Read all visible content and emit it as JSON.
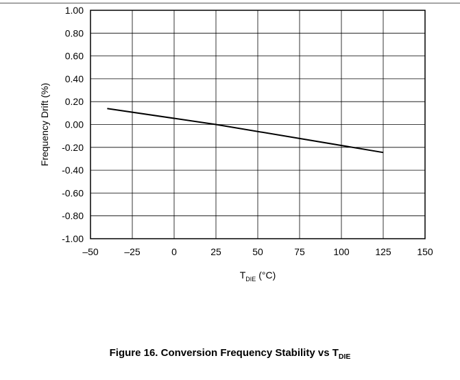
{
  "chart_data": {
    "type": "line",
    "title": "",
    "xlabel": "T",
    "xlabel_sub": "DIE",
    "xlabel_suffix": " (°C)",
    "ylabel": "Frequency Drift (%)",
    "xlim": [
      -50,
      150
    ],
    "ylim": [
      -1.0,
      1.0
    ],
    "x_ticks": [
      -50,
      -25,
      0,
      25,
      50,
      75,
      100,
      125,
      150
    ],
    "x_tick_labels": [
      "–50",
      "–25",
      "0",
      "25",
      "50",
      "75",
      "100",
      "125",
      "150"
    ],
    "y_ticks": [
      1.0,
      0.8,
      0.6,
      0.4,
      0.2,
      0.0,
      -0.2,
      -0.4,
      -0.6,
      -0.8,
      -1.0
    ],
    "y_tick_labels": [
      "1.00",
      "0.80",
      "0.60",
      "0.40",
      "0.20",
      "0.00",
      "-0.20",
      "-0.40",
      "-0.60",
      "-0.80",
      "-1.00"
    ],
    "grid": true,
    "series": [
      {
        "color": "#000000",
        "x": [
          -40,
          25,
          125
        ],
        "y": [
          0.14,
          0.0,
          -0.245
        ]
      }
    ]
  },
  "caption": {
    "text": "Figure 16. Conversion Frequency Stability vs T",
    "sub": "DIE"
  }
}
